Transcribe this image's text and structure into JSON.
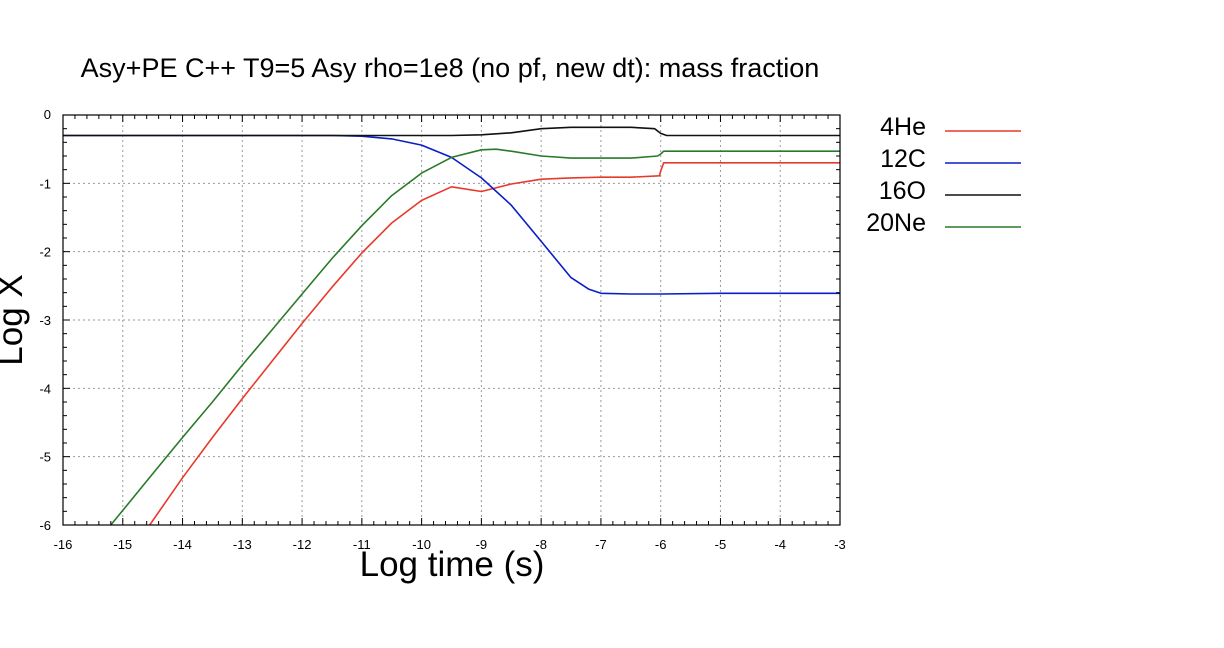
{
  "chart_data": {
    "type": "line",
    "title": "Asy+PE C++ T9=5 Asy rho=1e8 (no pf, new dt): mass fraction",
    "xlabel": "Log time (s)",
    "ylabel": "Log X",
    "xlim": [
      -16,
      -3
    ],
    "ylim": [
      -6,
      0
    ],
    "x_ticks": [
      -16,
      -15,
      -14,
      -13,
      -12,
      -11,
      -10,
      -9,
      -8,
      -7,
      -6,
      -5,
      -4,
      -3
    ],
    "y_ticks": [
      0,
      -1,
      -2,
      -3,
      -4,
      -5,
      -6
    ],
    "x_tick_labels": [
      "-16",
      "-15",
      "-14",
      "-13",
      "-12",
      "-11",
      "-10",
      "-9",
      "-8",
      "-7",
      "-6",
      "-5",
      "-4",
      "-3"
    ],
    "y_tick_labels": [
      "0",
      "-1",
      "-2",
      "-3",
      "-4",
      "-5",
      "-6"
    ],
    "grid": true,
    "legend_position": "right",
    "series": [
      {
        "name": "4He",
        "color": "#e8392c",
        "x": [
          -14.55,
          -14,
          -13.5,
          -13,
          -12.5,
          -12,
          -11.5,
          -11,
          -10.5,
          -10,
          -9.5,
          -9,
          -8.5,
          -8,
          -7.5,
          -7,
          -6.5,
          -6.02,
          -6,
          -5.95,
          -5,
          -4,
          -3
        ],
        "y": [
          -6.0,
          -5.31,
          -4.72,
          -4.15,
          -3.6,
          -3.05,
          -2.52,
          -2.02,
          -1.58,
          -1.25,
          -1.05,
          -1.12,
          -1.01,
          -0.94,
          -0.92,
          -0.91,
          -0.91,
          -0.89,
          -0.82,
          -0.7,
          -0.7,
          -0.7,
          -0.7
        ]
      },
      {
        "name": "12C",
        "color": "#0a1ec8",
        "x": [
          -16,
          -15,
          -14,
          -13,
          -12,
          -11.5,
          -11,
          -10.5,
          -10,
          -9.5,
          -9,
          -8.5,
          -8,
          -7.5,
          -7.2,
          -7,
          -6.5,
          -6,
          -5,
          -4,
          -3
        ],
        "y": [
          -0.3,
          -0.3,
          -0.3,
          -0.3,
          -0.3,
          -0.3,
          -0.31,
          -0.35,
          -0.44,
          -0.62,
          -0.92,
          -1.32,
          -1.85,
          -2.38,
          -2.55,
          -2.61,
          -2.62,
          -2.62,
          -2.61,
          -2.61,
          -2.61
        ]
      },
      {
        "name": "16O",
        "color": "#111111",
        "x": [
          -16,
          -12,
          -11,
          -10,
          -9.5,
          -9,
          -8.5,
          -8,
          -7.5,
          -7,
          -6.5,
          -6.1,
          -6,
          -5.9,
          -5,
          -4,
          -3
        ],
        "y": [
          -0.3,
          -0.3,
          -0.3,
          -0.3,
          -0.3,
          -0.29,
          -0.26,
          -0.2,
          -0.18,
          -0.18,
          -0.18,
          -0.2,
          -0.27,
          -0.3,
          -0.3,
          -0.3,
          -0.3
        ]
      },
      {
        "name": "20Ne",
        "color": "#2a7a2a",
        "x": [
          -15.2,
          -14.5,
          -14,
          -13.5,
          -13,
          -12.5,
          -12,
          -11.5,
          -11,
          -10.5,
          -10,
          -9.5,
          -9,
          -8.75,
          -8.5,
          -8,
          -7.5,
          -7,
          -6.5,
          -6.05,
          -6,
          -5.95,
          -5,
          -4,
          -3
        ],
        "y": [
          -6.0,
          -5.25,
          -4.72,
          -4.2,
          -3.66,
          -3.14,
          -2.62,
          -2.1,
          -1.62,
          -1.18,
          -0.85,
          -0.62,
          -0.51,
          -0.5,
          -0.53,
          -0.6,
          -0.63,
          -0.63,
          -0.63,
          -0.6,
          -0.57,
          -0.53,
          -0.53,
          -0.53,
          -0.53
        ]
      }
    ]
  }
}
